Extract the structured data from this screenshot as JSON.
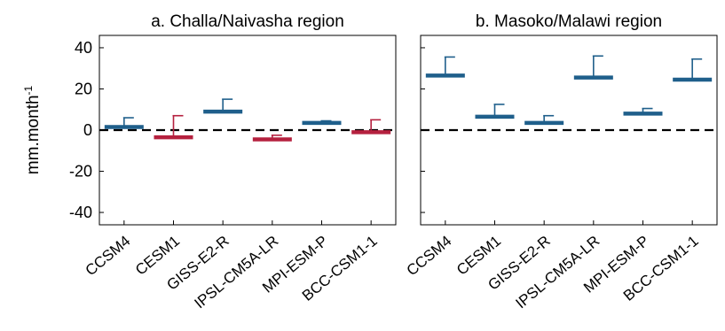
{
  "chart_data": [
    {
      "type": "bar",
      "title": "a. Challa/Naivasha region",
      "ylabel": "mm.month",
      "ylabel_superscript": "-1",
      "ylim": [
        -46,
        46
      ],
      "yticks": [
        -40,
        -20,
        0,
        20,
        40
      ],
      "zero_line": "dashed",
      "categories": [
        "CCSM4",
        "CESM1",
        "GISS-E2-R",
        "IPSL-CM5A-LR",
        "MPI-ESM-P",
        "BCC-CSM1-1"
      ],
      "values": [
        1.5,
        -3.5,
        9,
        -4.5,
        3.5,
        -1
      ],
      "error_upper": [
        6,
        7,
        15,
        -2.5,
        4.5,
        5
      ],
      "colors": [
        "#1f5f8b",
        "#b5213f",
        "#1f5f8b",
        "#b5213f",
        "#1f5f8b",
        "#b5213f"
      ]
    },
    {
      "type": "bar",
      "title": "b. Masoko/Malawi region",
      "ylim": [
        -46,
        46
      ],
      "zero_line": "dashed",
      "categories": [
        "CCSM4",
        "CESM1",
        "GISS-E2-R",
        "IPSL-CM5A-LR",
        "MPI-ESM-P",
        "BCC-CSM1-1"
      ],
      "values": [
        26.5,
        6.5,
        3.5,
        25.5,
        8,
        24.5
      ],
      "error_upper": [
        35.5,
        12.5,
        7,
        36,
        10.5,
        34.5
      ],
      "colors": [
        "#1f5f8b",
        "#1f5f8b",
        "#1f5f8b",
        "#1f5f8b",
        "#1f5f8b",
        "#1f5f8b"
      ]
    }
  ]
}
